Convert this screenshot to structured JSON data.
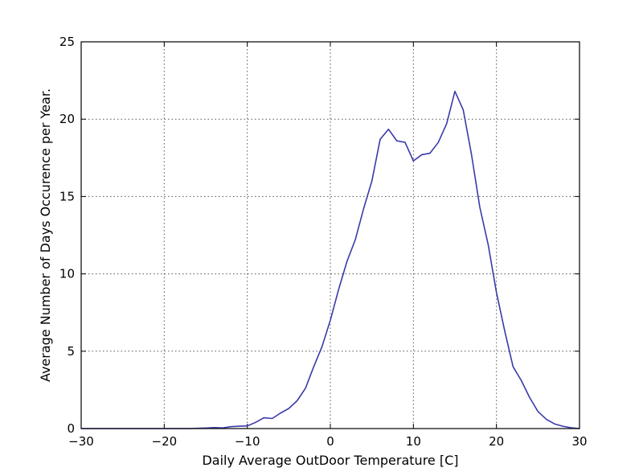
{
  "chart_data": {
    "type": "line",
    "title": "",
    "xlabel": "Daily Average OutDoor Temperature [C]",
    "ylabel": "Average Number of Days Occurence per Year.",
    "xlim": [
      -30,
      30
    ],
    "ylim": [
      0,
      25
    ],
    "xticks": [
      -30,
      -20,
      -10,
      0,
      10,
      20,
      30
    ],
    "yticks": [
      0,
      5,
      10,
      15,
      20,
      25
    ],
    "xtick_labels": [
      "−30",
      "−20",
      "−10",
      "0",
      "10",
      "20",
      "30"
    ],
    "ytick_labels": [
      "0",
      "5",
      "10",
      "15",
      "20",
      "25"
    ],
    "grid": true,
    "legend": "none",
    "colors": {
      "series": "#3a3aaa"
    },
    "series": [
      {
        "x": [
          -30,
          -29,
          -28,
          -27,
          -26,
          -25,
          -24,
          -23,
          -22,
          -21,
          -20,
          -19,
          -18,
          -17,
          -16,
          -15,
          -14,
          -13,
          -12,
          -11,
          -10,
          -9,
          -8,
          -7,
          -6,
          -5,
          -4,
          -3,
          -2,
          -1,
          0,
          1,
          2,
          3,
          4,
          5,
          6,
          7,
          8,
          9,
          10,
          11,
          12,
          13,
          14,
          15,
          16,
          17,
          18,
          19,
          20,
          21,
          22,
          23,
          24,
          25,
          26,
          27,
          28,
          29,
          30
        ],
        "values": [
          0,
          0,
          0,
          0,
          0,
          0,
          0,
          0,
          0,
          0,
          0,
          0,
          0,
          0,
          0.02,
          0.03,
          0.06,
          0.04,
          0.12,
          0.15,
          0.17,
          0.4,
          0.7,
          0.65,
          1.0,
          1.3,
          1.8,
          2.6,
          4.0,
          5.3,
          7.0,
          9.0,
          10.8,
          12.2,
          14.2,
          16.0,
          18.7,
          19.35,
          18.6,
          18.5,
          17.3,
          17.7,
          17.8,
          18.5,
          19.7,
          21.8,
          20.6,
          17.7,
          14.3,
          11.9,
          8.8,
          6.3,
          4.0,
          3.1,
          2.0,
          1.1,
          0.6,
          0.3,
          0.15,
          0.05,
          0.0
        ]
      }
    ]
  }
}
